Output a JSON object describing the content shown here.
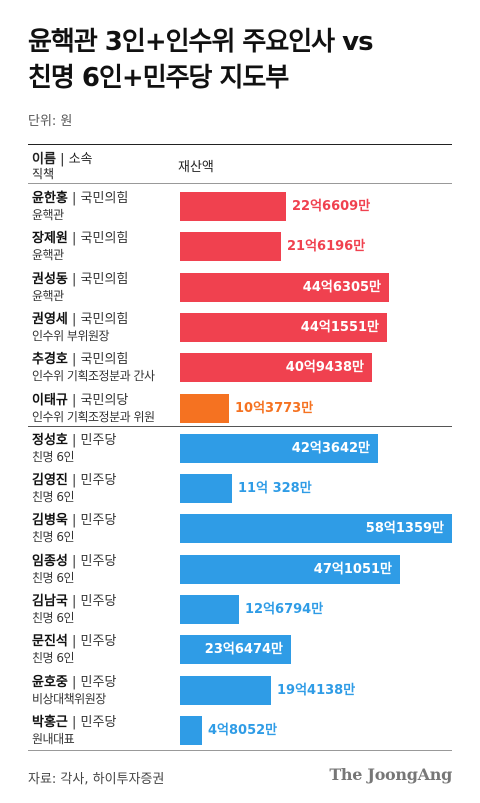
{
  "title_line1": "윤핵관 3인+인수위 주요인사 vs",
  "title_line2": "친명 6인+민주당 지도부",
  "unit": "단위: 원",
  "header": {
    "name": "이름",
    "party": "| 소속",
    "role": "직책",
    "value": "재산액"
  },
  "source": "자료: 각사, 하이투자증권",
  "logo": "The JoongAng",
  "colors": {
    "ppp": "#f0414f",
    "pplp": "#f57221",
    "dpk": "#2f9ce6"
  },
  "rows": [
    {
      "name": "윤한홍",
      "party": "| 국민의힘",
      "role": "윤핵관",
      "label": "22억6609만",
      "color": "#f0414f"
    },
    {
      "name": "장제원",
      "party": "| 국민의힘",
      "role": "윤핵관",
      "label": "21억6196만",
      "color": "#f0414f"
    },
    {
      "name": "권성동",
      "party": "| 국민의힘",
      "role": "윤핵관",
      "label": "44억6305만",
      "color": "#f0414f"
    },
    {
      "name": "권영세",
      "party": "| 국민의힘",
      "role": "인수위 부위원장",
      "label": "44억1551만",
      "color": "#f0414f"
    },
    {
      "name": "추경호",
      "party": "| 국민의힘",
      "role": "인수위 기획조정분과 간사",
      "label": "40억9438만",
      "color": "#f0414f"
    },
    {
      "name": "이태규",
      "party": "| 국민의당",
      "role": "인수위 기획조정분과 위원",
      "label": "10억3773만",
      "color": "#f57221"
    },
    {
      "name": "정성호",
      "party": "| 민주당",
      "role": "친명 6인",
      "label": "42억3642만",
      "color": "#2f9ce6"
    },
    {
      "name": "김영진",
      "party": "| 민주당",
      "role": "친명 6인",
      "label": "11억 328만",
      "color": "#2f9ce6"
    },
    {
      "name": "김병욱",
      "party": "| 민주당",
      "role": "친명 6인",
      "label": "58억1359만",
      "color": "#2f9ce6"
    },
    {
      "name": "임종성",
      "party": "| 민주당",
      "role": "친명 6인",
      "label": "47억1051만",
      "color": "#2f9ce6"
    },
    {
      "name": "김남국",
      "party": "| 민주당",
      "role": "친명 6인",
      "label": "12억6794만",
      "color": "#2f9ce6"
    },
    {
      "name": "문진석",
      "party": "| 민주당",
      "role": "친명 6인",
      "label": "23억6474만",
      "color": "#2f9ce6"
    },
    {
      "name": "윤호중",
      "party": "| 민주당",
      "role": "비상대책위원장",
      "label": "19억4138만",
      "color": "#2f9ce6"
    },
    {
      "name": "박홍근",
      "party": "| 민주당",
      "role": "원내대표",
      "label": "4억8052만",
      "color": "#2f9ce6"
    }
  ],
  "chart_data": {
    "type": "bar",
    "orientation": "horizontal",
    "unit": "원",
    "categories": [
      "윤한홍",
      "장제원",
      "권성동",
      "권영세",
      "추경호",
      "이태규",
      "정성호",
      "김영진",
      "김병욱",
      "임종성",
      "김남국",
      "문진석",
      "윤호중",
      "박홍근"
    ],
    "values": [
      2266090000,
      2161960000,
      4463050000,
      4415510000,
      4094380000,
      1037730000,
      4236420000,
      1103280000,
      5813590000,
      4710510000,
      1267940000,
      2364740000,
      1941380000,
      480520000
    ],
    "xlim": [
      0,
      5813590000
    ],
    "grid": false,
    "legend": "none"
  }
}
